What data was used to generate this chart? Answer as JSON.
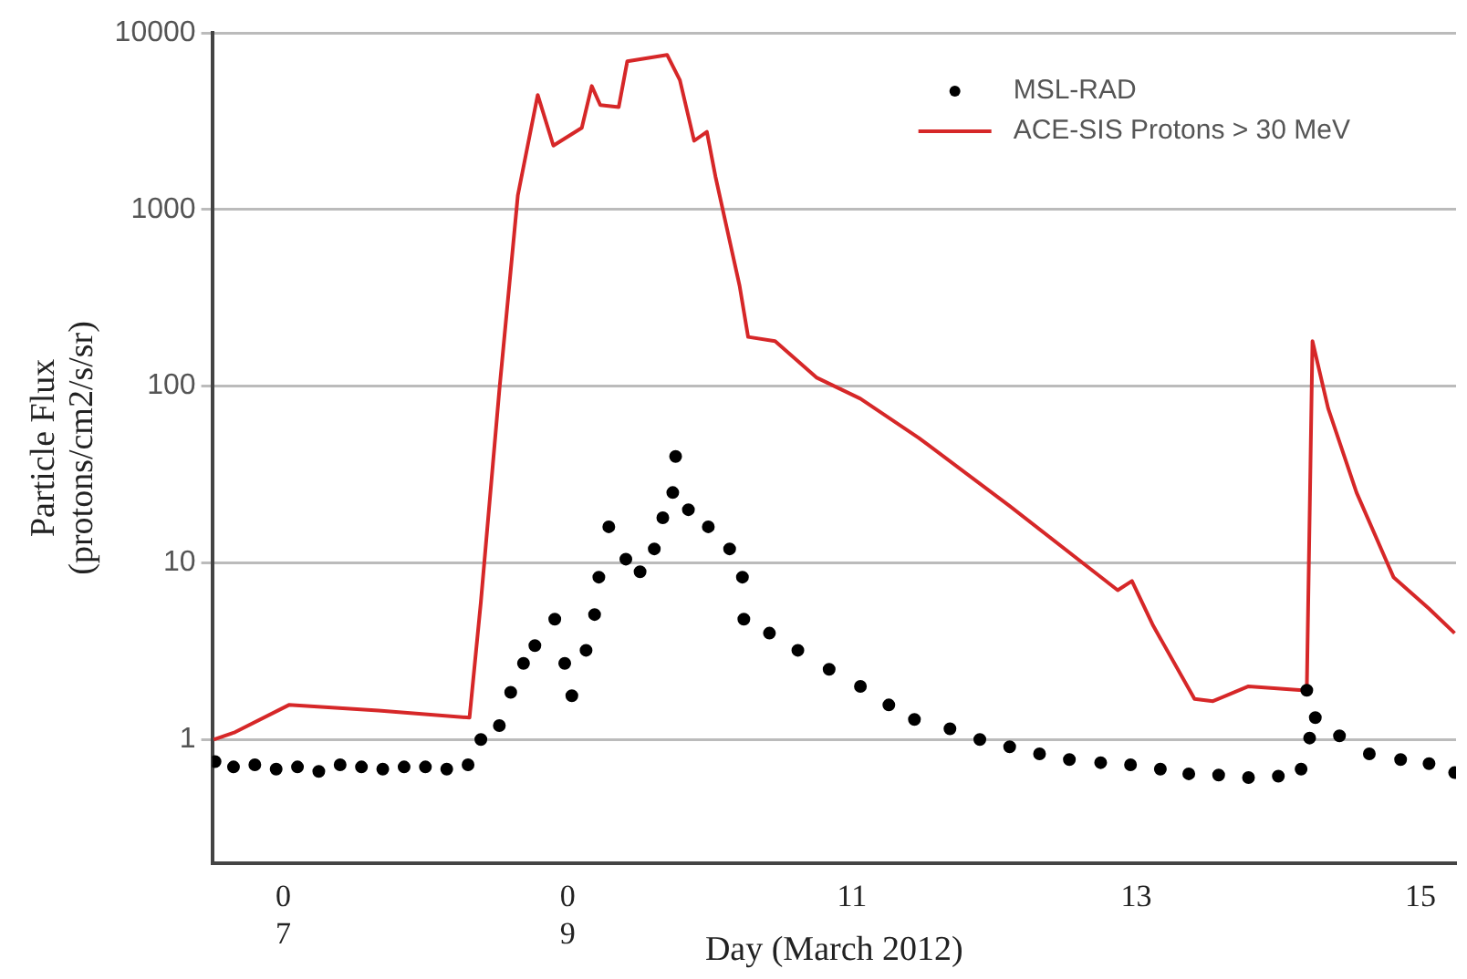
{
  "chart_data": {
    "type": "scatter",
    "xlabel": "Day (March 2012)",
    "ylabel": "Particle Flux\n(protons/cm2/s/sr)",
    "log": "y",
    "grid": "y",
    "legend": "top right",
    "xlim": [
      6.5,
      15.25
    ],
    "xticks": [
      {
        "value": 7,
        "label": "0\n7"
      },
      {
        "value": 9,
        "label": "0\n9"
      },
      11,
      13,
      15
    ],
    "ylim": [
      0.2,
      10000
    ],
    "yticks": [
      1,
      10,
      100,
      1000,
      10000
    ],
    "series": [
      {
        "name": "MSL-RAD",
        "marker": "circle",
        "color": "#000000",
        "x": [
          6.52,
          6.65,
          6.8,
          6.95,
          7.1,
          7.25,
          7.4,
          7.55,
          7.7,
          7.85,
          8.0,
          8.15,
          8.3,
          8.39,
          8.52,
          8.6,
          8.69,
          8.77,
          8.91,
          8.98,
          9.03,
          9.13,
          9.19,
          9.22,
          9.29,
          9.41,
          9.51,
          9.61,
          9.67,
          9.74,
          9.76,
          9.85,
          9.99,
          10.14,
          10.23,
          10.24,
          10.42,
          10.62,
          10.84,
          11.06,
          11.26,
          11.44,
          11.69,
          11.9,
          12.11,
          12.32,
          12.53,
          12.75,
          12.96,
          13.17,
          13.37,
          13.58,
          13.79,
          14.0,
          14.16,
          14.2,
          14.22,
          14.26,
          14.43,
          14.64,
          14.86,
          15.06,
          15.24
        ],
        "values": [
          0.75,
          0.7,
          0.72,
          0.68,
          0.7,
          0.66,
          0.72,
          0.7,
          0.68,
          0.7,
          0.7,
          0.68,
          0.72,
          1.0,
          1.2,
          1.85,
          2.7,
          3.4,
          4.8,
          2.7,
          1.77,
          3.2,
          5.1,
          8.3,
          16,
          10.5,
          8.9,
          12,
          18,
          25,
          40,
          20,
          16,
          12,
          8.3,
          4.8,
          4.0,
          3.2,
          2.5,
          2.0,
          1.57,
          1.3,
          1.15,
          1.0,
          0.91,
          0.83,
          0.77,
          0.74,
          0.72,
          0.68,
          0.64,
          0.63,
          0.61,
          0.62,
          0.68,
          1.9,
          1.02,
          1.33,
          1.05,
          0.83,
          0.77,
          0.73,
          0.65
        ]
      },
      {
        "name": "ACE-SIS Protons > 30 MeV",
        "type": "line",
        "marker": "none",
        "line_style": "solid",
        "color": "#d62728",
        "x": [
          6.51,
          6.66,
          7.04,
          7.67,
          8.31,
          8.39,
          8.52,
          8.65,
          8.79,
          8.9,
          9.1,
          9.17,
          9.23,
          9.36,
          9.42,
          9.7,
          9.79,
          9.89,
          9.98,
          10.04,
          10.21,
          10.27,
          10.46,
          10.75,
          11.06,
          11.47,
          12.11,
          12.87,
          12.97,
          13.12,
          13.41,
          13.54,
          13.79,
          14.17,
          14.2,
          14.24,
          14.35,
          14.55,
          14.81,
          15.06,
          15.24
        ],
        "values": [
          1.0,
          1.1,
          1.57,
          1.46,
          1.33,
          6,
          95,
          1200,
          4450,
          2300,
          2900,
          5000,
          3900,
          3800,
          6900,
          7500,
          5400,
          2450,
          2750,
          1540,
          370,
          190,
          180,
          112,
          85,
          51,
          21,
          7,
          7.9,
          4.4,
          1.7,
          1.65,
          2.0,
          1.9,
          1.9,
          180,
          75,
          25,
          8.3,
          5.5,
          4.0
        ]
      }
    ]
  }
}
